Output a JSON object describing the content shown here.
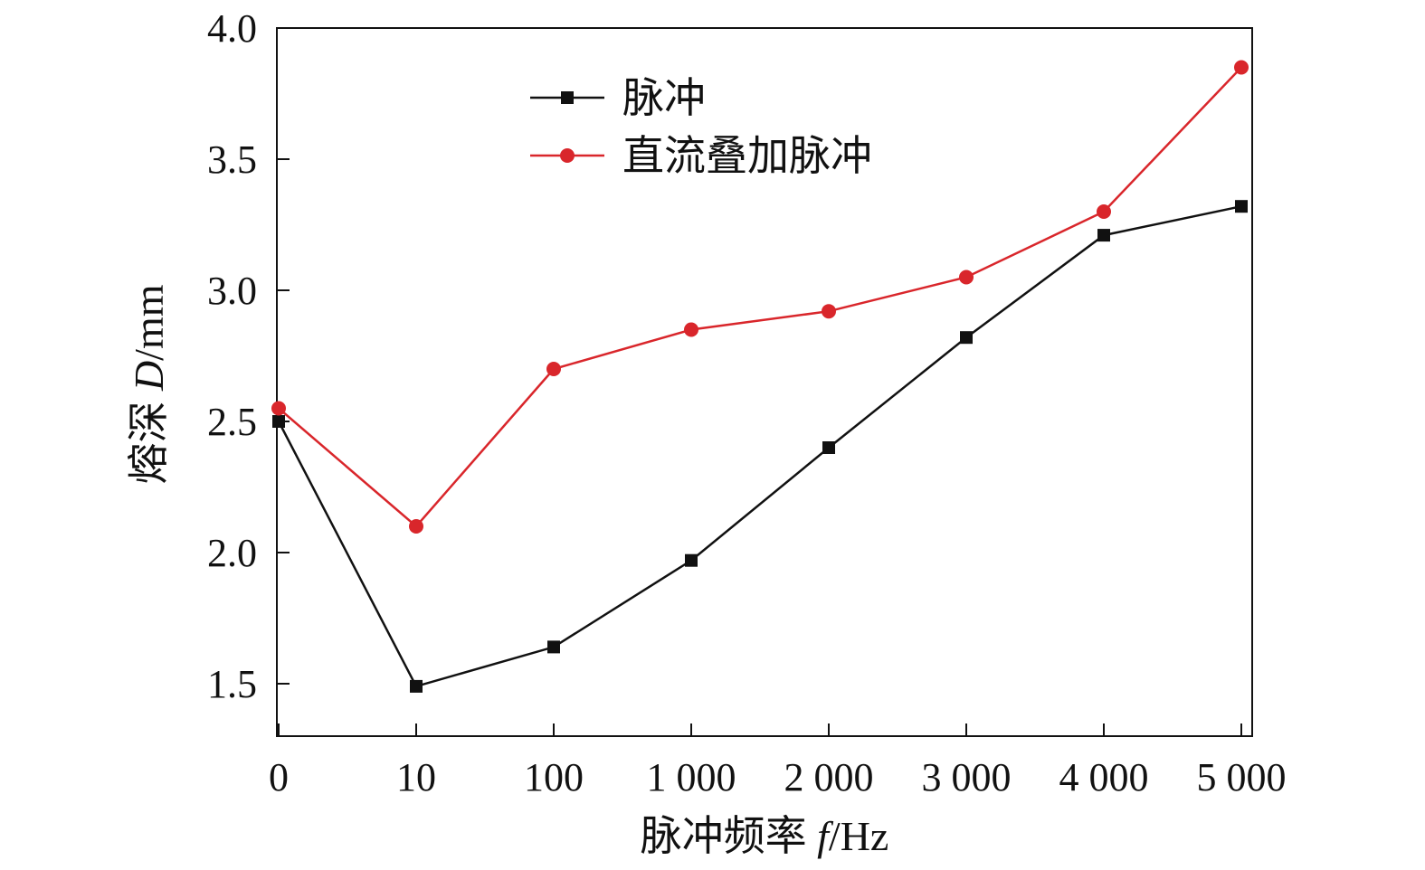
{
  "chart_data": {
    "type": "line",
    "title": "",
    "xlabel": "脉冲频率 f/Hz",
    "xlabel_main": "脉冲频率 ",
    "xlabel_var": "f",
    "xlabel_unit": "/Hz",
    "ylabel": "熔深 D/mm",
    "ylabel_main": "熔深 ",
    "ylabel_var": "D",
    "ylabel_unit": "/mm",
    "categories": [
      "0",
      "10",
      "100",
      "1 000",
      "2 000",
      "3 000",
      "4 000",
      "5 000"
    ],
    "ylim": [
      1.3,
      4.0
    ],
    "yticks": [
      1.5,
      2.0,
      2.5,
      3.0,
      3.5,
      4.0
    ],
    "ytick_labels": [
      "1.5",
      "2.0",
      "2.5",
      "3.0",
      "3.5",
      "4.0"
    ],
    "grid": false,
    "legend_position": "top-left",
    "series": [
      {
        "name": "脉冲",
        "color": "#111111",
        "marker": "square",
        "values": [
          2.5,
          1.49,
          1.64,
          1.97,
          2.4,
          2.82,
          3.21,
          3.32
        ]
      },
      {
        "name": "直流叠加脉冲",
        "color": "#d9262b",
        "marker": "circle",
        "values": [
          2.55,
          2.1,
          2.7,
          2.85,
          2.92,
          3.05,
          3.3,
          3.85
        ]
      }
    ]
  }
}
